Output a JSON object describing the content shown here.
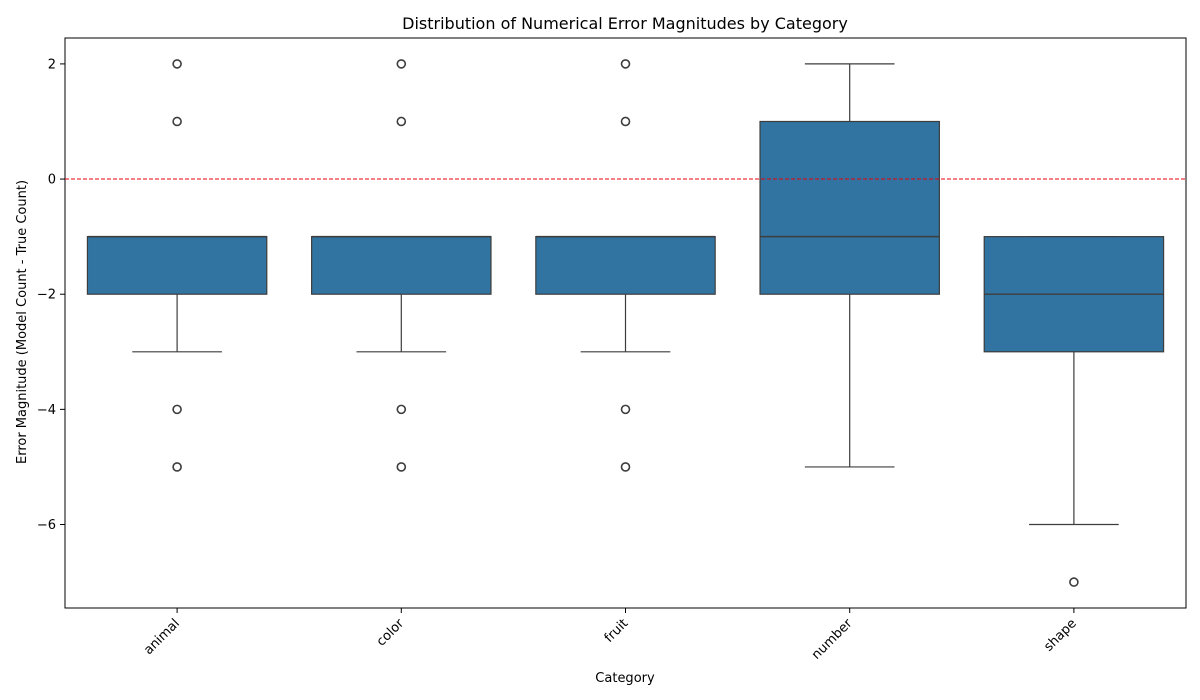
{
  "chart_data": {
    "type": "box",
    "title": "Distribution of Numerical Error Magnitudes by Category",
    "xlabel": "Category",
    "ylabel": "Error Magnitude (Model Count - True Count)",
    "categories": [
      "animal",
      "color",
      "fruit",
      "number",
      "shape"
    ],
    "ylim": [
      -7.45,
      2.45
    ],
    "yticks": [
      2,
      0,
      -2,
      -4,
      -6
    ],
    "ytick_labels": [
      "2",
      "0",
      "−2",
      "−4",
      "−6"
    ],
    "reference_line": {
      "y": 0,
      "color": "#e8000b",
      "style": "dashed"
    },
    "box_color": "#3274a1",
    "boxes": [
      {
        "category": "animal",
        "q1": -2,
        "median": -1,
        "q3": -1,
        "whisker_low": -3,
        "whisker_high": -1,
        "outliers": [
          2,
          1,
          -4,
          -5
        ]
      },
      {
        "category": "color",
        "q1": -2,
        "median": -1,
        "q3": -1,
        "whisker_low": -3,
        "whisker_high": -1,
        "outliers": [
          2,
          1,
          -4,
          -5
        ]
      },
      {
        "category": "fruit",
        "q1": -2,
        "median": -1,
        "q3": -1,
        "whisker_low": -3,
        "whisker_high": -1,
        "outliers": [
          2,
          1,
          -4,
          -5
        ]
      },
      {
        "category": "number",
        "q1": -2,
        "median": -1,
        "q3": 1,
        "whisker_low": -5,
        "whisker_high": 2,
        "outliers": []
      },
      {
        "category": "shape",
        "q1": -3,
        "median": -2,
        "q3": -1,
        "whisker_low": -6,
        "whisker_high": -1,
        "outliers": [
          -7
        ]
      }
    ]
  }
}
